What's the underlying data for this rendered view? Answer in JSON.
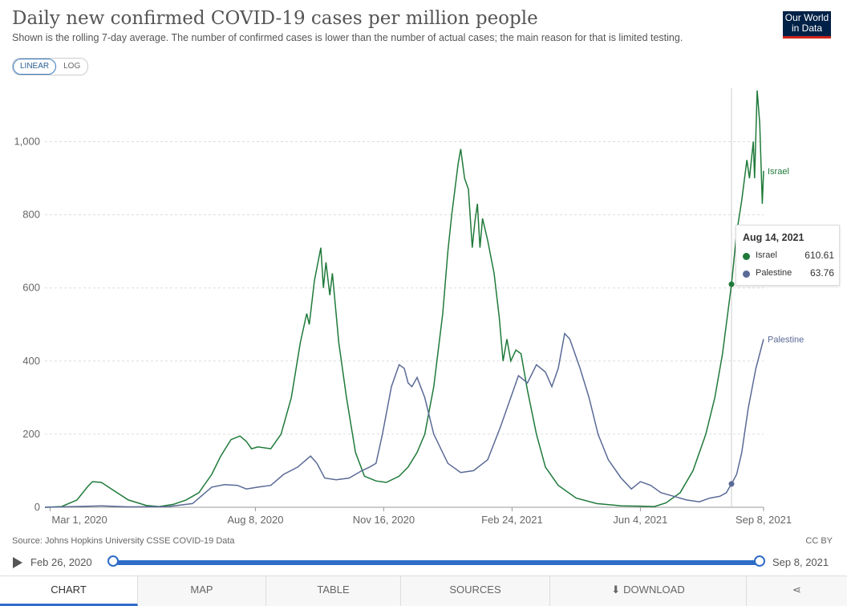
{
  "title": "Daily new confirmed COVID-19 cases per million people",
  "subtitle": "Shown is the rolling 7-day average. The number of confirmed cases is lower than the number of actual cases; the main reason for that is limited testing.",
  "logo": {
    "line1": "Our World",
    "line2": "in Data"
  },
  "scale": {
    "linear": "LINEAR",
    "log": "LOG",
    "selected": "LINEAR"
  },
  "source": "Source: Johns Hopkins University CSSE COVID-19 Data",
  "license": "CC BY",
  "timeline": {
    "start": "Feb 26, 2020",
    "end": "Sep 8, 2021"
  },
  "tabs": [
    "CHART",
    "MAP",
    "TABLE",
    "SOURCES",
    "DOWNLOAD"
  ],
  "share_icon": "share-icon",
  "download_icon": "download-icon",
  "colors": {
    "israel": "#1f7a3a",
    "palestine": "#5a6a96",
    "accent": "#2e6cc7"
  },
  "tooltip": {
    "date": "Aug 14, 2021",
    "rows": [
      {
        "name": "Israel",
        "value": "610.61"
      },
      {
        "name": "Palestine",
        "value": "63.76"
      }
    ]
  },
  "chart_data": {
    "type": "line",
    "title": "Daily new confirmed COVID-19 cases per million people",
    "x_start": "2020-02-26",
    "x_end": "2021-09-08",
    "ylim": [
      0,
      1150
    ],
    "yticks": [
      0,
      200,
      400,
      600,
      800,
      1000
    ],
    "ytick_labels": [
      "0",
      "200",
      "400",
      "600",
      "800",
      "1,000"
    ],
    "xticks": [
      {
        "date": "2020-03-01",
        "label": "Mar 1, 2020"
      },
      {
        "date": "2020-08-08",
        "label": "Aug 8, 2020"
      },
      {
        "date": "2020-11-16",
        "label": "Nov 16, 2020"
      },
      {
        "date": "2021-02-24",
        "label": "Feb 24, 2021"
      },
      {
        "date": "2021-06-04",
        "label": "Jun 4, 2021"
      },
      {
        "date": "2021-09-08",
        "label": "Sep 8, 2021"
      }
    ],
    "grid": true,
    "hover_date": "2021-08-14",
    "series": [
      {
        "name": "Israel",
        "color": "#1f7a3a",
        "points": [
          [
            "2020-02-26",
            0
          ],
          [
            "2020-03-10",
            2
          ],
          [
            "2020-03-22",
            20
          ],
          [
            "2020-03-30",
            55
          ],
          [
            "2020-04-03",
            70
          ],
          [
            "2020-04-10",
            68
          ],
          [
            "2020-04-20",
            45
          ],
          [
            "2020-05-01",
            20
          ],
          [
            "2020-05-15",
            5
          ],
          [
            "2020-05-25",
            2
          ],
          [
            "2020-06-05",
            8
          ],
          [
            "2020-06-15",
            20
          ],
          [
            "2020-06-25",
            40
          ],
          [
            "2020-07-05",
            90
          ],
          [
            "2020-07-12",
            140
          ],
          [
            "2020-07-20",
            185
          ],
          [
            "2020-07-27",
            195
          ],
          [
            "2020-08-01",
            180
          ],
          [
            "2020-08-05",
            160
          ],
          [
            "2020-08-10",
            165
          ],
          [
            "2020-08-20",
            160
          ],
          [
            "2020-08-28",
            200
          ],
          [
            "2020-09-05",
            300
          ],
          [
            "2020-09-12",
            450
          ],
          [
            "2020-09-17",
            530
          ],
          [
            "2020-09-19",
            500
          ],
          [
            "2020-09-23",
            620
          ],
          [
            "2020-09-28",
            710
          ],
          [
            "2020-09-30",
            600
          ],
          [
            "2020-10-02",
            670
          ],
          [
            "2020-10-05",
            580
          ],
          [
            "2020-10-07",
            640
          ],
          [
            "2020-10-12",
            450
          ],
          [
            "2020-10-18",
            300
          ],
          [
            "2020-10-25",
            150
          ],
          [
            "2020-11-01",
            85
          ],
          [
            "2020-11-10",
            72
          ],
          [
            "2020-11-18",
            68
          ],
          [
            "2020-11-28",
            85
          ],
          [
            "2020-12-05",
            110
          ],
          [
            "2020-12-12",
            150
          ],
          [
            "2020-12-18",
            200
          ],
          [
            "2020-12-25",
            330
          ],
          [
            "2021-01-01",
            530
          ],
          [
            "2021-01-05",
            700
          ],
          [
            "2021-01-08",
            800
          ],
          [
            "2021-01-13",
            940
          ],
          [
            "2021-01-15",
            980
          ],
          [
            "2021-01-18",
            900
          ],
          [
            "2021-01-21",
            870
          ],
          [
            "2021-01-24",
            710
          ],
          [
            "2021-01-26",
            780
          ],
          [
            "2021-01-28",
            830
          ],
          [
            "2021-01-30",
            710
          ],
          [
            "2021-02-01",
            790
          ],
          [
            "2021-02-05",
            730
          ],
          [
            "2021-02-10",
            640
          ],
          [
            "2021-02-14",
            520
          ],
          [
            "2021-02-17",
            400
          ],
          [
            "2021-02-20",
            460
          ],
          [
            "2021-02-23",
            400
          ],
          [
            "2021-02-27",
            430
          ],
          [
            "2021-03-03",
            420
          ],
          [
            "2021-03-08",
            320
          ],
          [
            "2021-03-15",
            200
          ],
          [
            "2021-03-22",
            110
          ],
          [
            "2021-04-01",
            60
          ],
          [
            "2021-04-15",
            25
          ],
          [
            "2021-05-01",
            10
          ],
          [
            "2021-05-20",
            4
          ],
          [
            "2021-06-04",
            3
          ],
          [
            "2021-06-15",
            2
          ],
          [
            "2021-06-24",
            12
          ],
          [
            "2021-07-05",
            40
          ],
          [
            "2021-07-15",
            100
          ],
          [
            "2021-07-25",
            200
          ],
          [
            "2021-08-01",
            300
          ],
          [
            "2021-08-07",
            420
          ],
          [
            "2021-08-14",
            610
          ],
          [
            "2021-08-18",
            750
          ],
          [
            "2021-08-22",
            840
          ],
          [
            "2021-08-26",
            950
          ],
          [
            "2021-08-28",
            900
          ],
          [
            "2021-08-31",
            1000
          ],
          [
            "2021-09-01",
            900
          ],
          [
            "2021-09-03",
            1140
          ],
          [
            "2021-09-05",
            1050
          ],
          [
            "2021-09-07",
            830
          ],
          [
            "2021-09-08",
            920
          ]
        ]
      },
      {
        "name": "Palestine",
        "color": "#5a6a96",
        "points": [
          [
            "2020-02-26",
            0
          ],
          [
            "2020-03-20",
            2
          ],
          [
            "2020-04-10",
            4
          ],
          [
            "2020-05-01",
            1
          ],
          [
            "2020-06-01",
            2
          ],
          [
            "2020-06-20",
            10
          ],
          [
            "2020-07-05",
            55
          ],
          [
            "2020-07-15",
            62
          ],
          [
            "2020-07-25",
            60
          ],
          [
            "2020-08-01",
            50
          ],
          [
            "2020-08-10",
            55
          ],
          [
            "2020-08-20",
            60
          ],
          [
            "2020-08-30",
            90
          ],
          [
            "2020-09-10",
            110
          ],
          [
            "2020-09-20",
            140
          ],
          [
            "2020-09-25",
            120
          ],
          [
            "2020-10-01",
            80
          ],
          [
            "2020-10-10",
            75
          ],
          [
            "2020-10-20",
            80
          ],
          [
            "2020-10-30",
            100
          ],
          [
            "2020-11-05",
            110
          ],
          [
            "2020-11-10",
            120
          ],
          [
            "2020-11-15",
            200
          ],
          [
            "2020-11-22",
            330
          ],
          [
            "2020-11-28",
            390
          ],
          [
            "2020-12-02",
            380
          ],
          [
            "2020-12-05",
            340
          ],
          [
            "2020-12-08",
            330
          ],
          [
            "2020-12-12",
            355
          ],
          [
            "2020-12-18",
            300
          ],
          [
            "2020-12-25",
            200
          ],
          [
            "2021-01-05",
            120
          ],
          [
            "2021-01-15",
            95
          ],
          [
            "2021-01-25",
            100
          ],
          [
            "2021-02-05",
            130
          ],
          [
            "2021-02-15",
            220
          ],
          [
            "2021-02-25",
            320
          ],
          [
            "2021-03-01",
            360
          ],
          [
            "2021-03-08",
            340
          ],
          [
            "2021-03-15",
            390
          ],
          [
            "2021-03-22",
            370
          ],
          [
            "2021-03-27",
            330
          ],
          [
            "2021-04-01",
            380
          ],
          [
            "2021-04-06",
            475
          ],
          [
            "2021-04-10",
            460
          ],
          [
            "2021-04-18",
            380
          ],
          [
            "2021-04-25",
            300
          ],
          [
            "2021-05-02",
            200
          ],
          [
            "2021-05-10",
            130
          ],
          [
            "2021-05-20",
            80
          ],
          [
            "2021-05-28",
            50
          ],
          [
            "2021-06-04",
            70
          ],
          [
            "2021-06-12",
            60
          ],
          [
            "2021-06-20",
            40
          ],
          [
            "2021-06-30",
            30
          ],
          [
            "2021-07-10",
            20
          ],
          [
            "2021-07-20",
            15
          ],
          [
            "2021-07-28",
            25
          ],
          [
            "2021-08-05",
            30
          ],
          [
            "2021-08-10",
            40
          ],
          [
            "2021-08-14",
            64
          ],
          [
            "2021-08-18",
            90
          ],
          [
            "2021-08-22",
            150
          ],
          [
            "2021-08-27",
            270
          ],
          [
            "2021-09-02",
            380
          ],
          [
            "2021-09-08",
            460
          ]
        ]
      }
    ]
  }
}
